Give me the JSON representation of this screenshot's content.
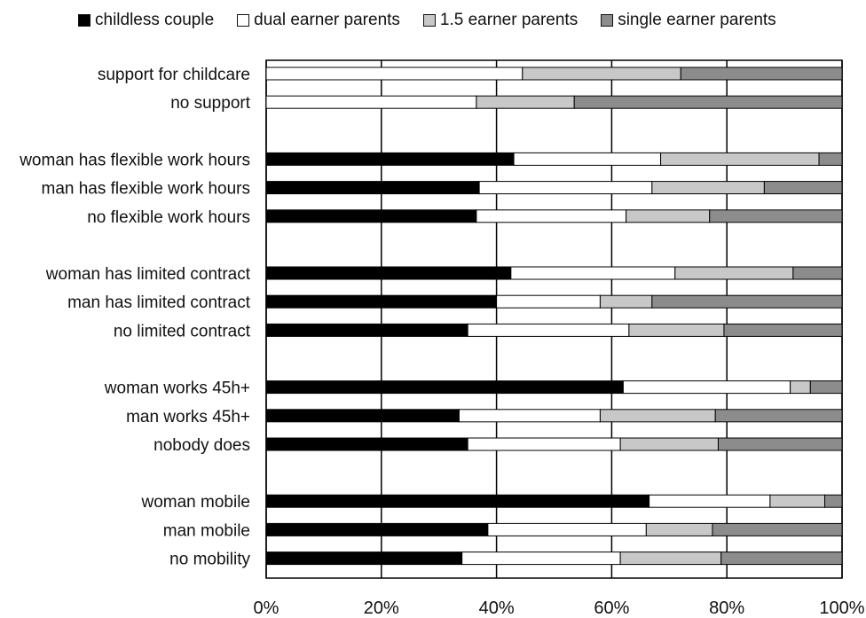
{
  "chart_data": {
    "type": "bar",
    "stacked": true,
    "orientation": "horizontal",
    "title": "",
    "xlabel": "",
    "ylabel": "",
    "xlim": [
      0,
      100
    ],
    "x_ticks": [
      "0%",
      "20%",
      "40%",
      "60%",
      "80%",
      "100%"
    ],
    "grid": true,
    "legend_position": "top",
    "categories": [
      "support for childcare",
      "no support",
      "woman has flexible work hours",
      "man has flexible work hours",
      "no flexible work hours",
      "woman has limited contract",
      "man has limited contract",
      "no limited contract",
      "woman works 45h+",
      "man works 45h+",
      "nobody does",
      "woman mobile",
      "man mobile",
      "no mobility"
    ],
    "series": [
      {
        "name": "childless couple",
        "color": "#000000",
        "values": [
          0,
          0,
          43,
          37,
          36.5,
          42.5,
          40,
          35,
          62,
          33.5,
          35,
          66.5,
          38.5,
          34
        ]
      },
      {
        "name": "dual earner parents",
        "color": "#ffffff",
        "values": [
          44.5,
          36.5,
          25.5,
          30,
          26,
          28.5,
          18,
          28,
          29,
          24.5,
          26.5,
          21,
          27.5,
          27.5
        ]
      },
      {
        "name": "1.5 earner parents",
        "color": "#c8c8c8",
        "values": [
          27.5,
          17,
          27.5,
          19.5,
          14.5,
          20.5,
          9,
          16.5,
          3.5,
          20,
          17,
          9.5,
          11.5,
          17.5
        ]
      },
      {
        "name": "single earner parents",
        "color": "#8c8c8c",
        "values": [
          28,
          46.5,
          4,
          13.5,
          23,
          8.5,
          33,
          20.5,
          5.5,
          22,
          21.5,
          3,
          22.5,
          21
        ]
      }
    ]
  }
}
